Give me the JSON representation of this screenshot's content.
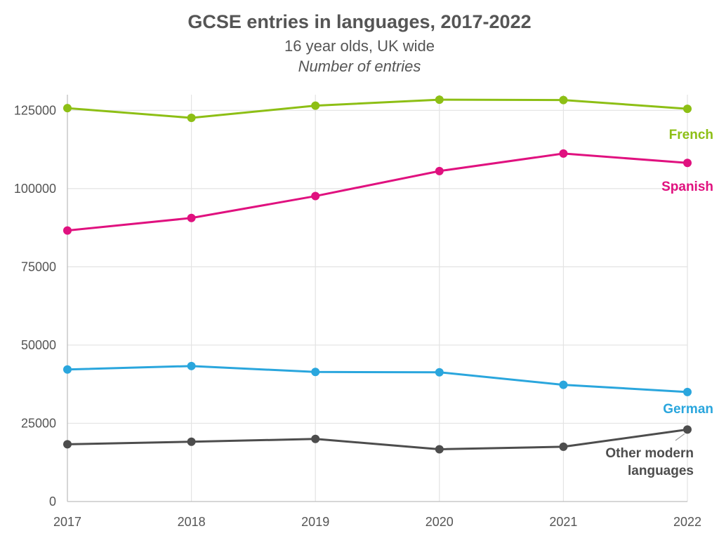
{
  "chart_data": {
    "type": "line",
    "title": "GCSE entries in languages, 2017-2022",
    "subtitle": "16 year olds, UK wide",
    "units_note": "Number of entries",
    "xlabel": "",
    "ylabel": "",
    "categories": [
      "2017",
      "2018",
      "2019",
      "2020",
      "2021",
      "2022"
    ],
    "ylim": [
      0,
      130000
    ],
    "yticks": [
      0,
      25000,
      50000,
      75000,
      100000,
      125000
    ],
    "grid": true,
    "legend": "direct labels at right",
    "series": [
      {
        "name": "French",
        "color": "#8dbf15",
        "values": [
          125700,
          122600,
          126500,
          128400,
          128300,
          125500
        ]
      },
      {
        "name": "Spanish",
        "color": "#e0117f",
        "values": [
          86600,
          90600,
          97600,
          105600,
          111200,
          108200
        ]
      },
      {
        "name": "German",
        "color": "#2aa6dd",
        "values": [
          42200,
          43300,
          41400,
          41300,
          37300,
          35000
        ]
      },
      {
        "name": "Other modern languages",
        "color": "#4d4d4d",
        "label_lines": [
          "Other modern",
          "languages"
        ],
        "values": [
          18300,
          19100,
          20000,
          16700,
          17500,
          23000
        ]
      }
    ]
  }
}
